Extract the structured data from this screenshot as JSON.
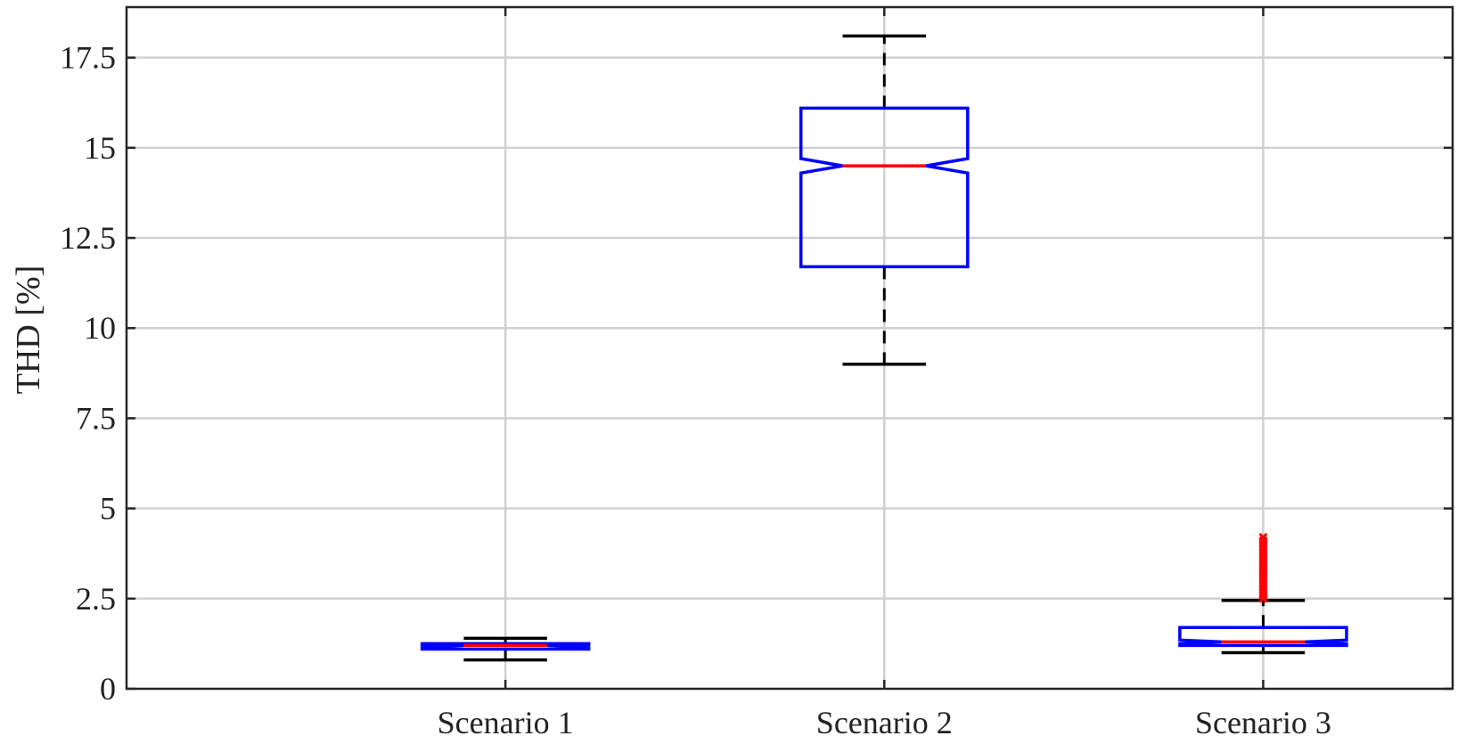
{
  "chart_data": {
    "type": "boxplot",
    "notched": true,
    "ylabel": "THD [%]",
    "xlabel": "",
    "title": "",
    "ylim": [
      0,
      18.9
    ],
    "yticks": [
      0,
      2.5,
      5,
      7.5,
      10,
      12.5,
      15,
      17.5
    ],
    "ytick_labels": [
      "0",
      "2.5",
      "5",
      "7.5",
      "10",
      "12.5",
      "15",
      "17.5"
    ],
    "xlim": [
      0,
      3.5
    ],
    "grid": true,
    "categories": [
      "Scenario 1",
      "Scenario 2",
      "Scenario 3"
    ],
    "boxes": [
      {
        "label": "Scenario 1",
        "whisker_low": 0.8,
        "q1": 1.1,
        "median": 1.2,
        "q3": 1.25,
        "whisker_high": 1.4,
        "notch_low": 1.15,
        "notch_high": 1.22,
        "outliers": []
      },
      {
        "label": "Scenario 2",
        "whisker_low": 9.0,
        "q1": 11.7,
        "median": 14.5,
        "q3": 16.1,
        "whisker_high": 18.1,
        "notch_low": 14.3,
        "notch_high": 14.7,
        "outliers": []
      },
      {
        "label": "Scenario 3",
        "whisker_low": 1.0,
        "q1": 1.2,
        "median": 1.3,
        "q3": 1.7,
        "whisker_high": 2.45,
        "notch_low": 1.25,
        "notch_high": 1.35,
        "outliers": [
          2.5,
          2.6,
          2.7,
          2.8,
          2.9,
          3.0,
          3.1,
          3.2,
          3.3,
          3.4,
          3.5,
          3.6,
          3.7,
          3.8,
          3.9,
          4.0,
          4.1,
          4.2
        ]
      }
    ],
    "colors": {
      "box": "#0000ff",
      "median": "#ff0000",
      "whisker": "#000000",
      "outlier": "#ff0000",
      "grid": "#d0d0d0",
      "axis": "#262626"
    }
  }
}
